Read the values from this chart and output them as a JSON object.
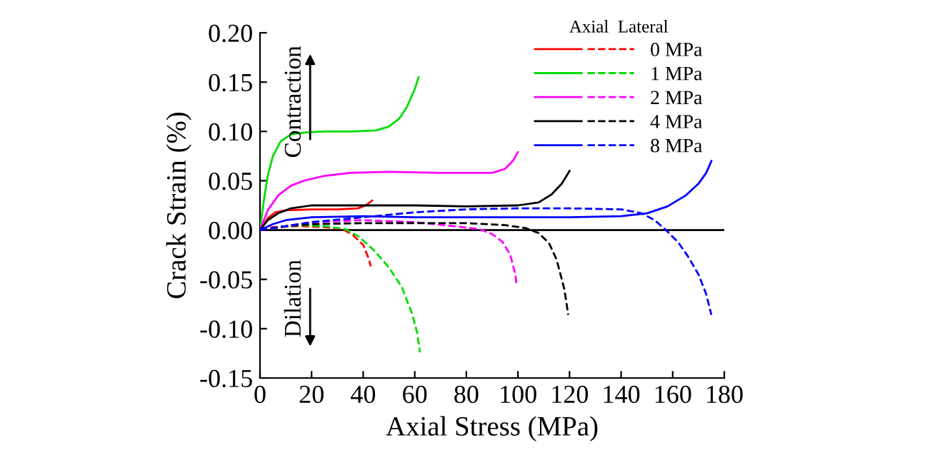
{
  "chart_data": {
    "type": "line",
    "xlabel": "Axial Stress (MPa)",
    "ylabel": "Crack Strain (%)",
    "legend_title": "Axial  Lateral",
    "legend": "top right",
    "line_style": "solid",
    "xlim": [
      0,
      180
    ],
    "ylim": [
      -0.15,
      0.2
    ],
    "xticks": [
      0,
      20,
      40,
      60,
      80,
      100,
      120,
      140,
      160,
      180
    ],
    "yticks": [
      {
        "value": -0.15,
        "label": "-0.15"
      },
      {
        "value": -0.1,
        "label": "-0.10"
      },
      {
        "value": -0.05,
        "label": "-0.05"
      },
      {
        "value": 0,
        "label": "0.00"
      },
      {
        "value": 0.05,
        "label": "0.05"
      },
      {
        "value": 0.1,
        "label": "0.10"
      },
      {
        "value": 0.15,
        "label": "0.15"
      },
      {
        "value": 0.2,
        "label": "0.20"
      }
    ],
    "ref_lines": [
      {
        "axis": "y",
        "value": 0,
        "color": "#000000"
      }
    ],
    "annotations": [
      "Contraction",
      "Dilation"
    ],
    "series": [
      {
        "name": "0 MPa",
        "color": "#ff0000",
        "x": [
          0,
          3,
          6,
          10,
          20,
          30,
          38,
          41,
          43.5
        ],
        "values": [
          0,
          0.012,
          0.018,
          0.02,
          0.021,
          0.021,
          0.022,
          0.025,
          0.03
        ]
      },
      {
        "color": "#ff0000",
        "line_style": "dashed",
        "x": [
          0,
          5,
          15,
          25,
          32,
          36,
          40,
          42,
          43
        ],
        "values": [
          0,
          0.003,
          0.004,
          0.003,
          0.001,
          -0.005,
          -0.015,
          -0.028,
          -0.037
        ]
      },
      {
        "name": "1 MPa",
        "color": "#00dd00",
        "x": [
          0,
          1.5,
          3,
          5,
          8,
          12,
          18,
          25,
          35,
          45,
          50,
          54,
          57,
          60,
          61.5
        ],
        "values": [
          0,
          0.03,
          0.055,
          0.075,
          0.09,
          0.097,
          0.099,
          0.1,
          0.1,
          0.101,
          0.105,
          0.113,
          0.125,
          0.143,
          0.155
        ]
      },
      {
        "color": "#00dd00",
        "line_style": "dashed",
        "x": [
          0,
          8,
          15,
          25,
          33,
          38,
          44,
          50,
          55,
          59,
          61,
          62
        ],
        "values": [
          0,
          0.003,
          0.005,
          0.004,
          0.001,
          -0.006,
          -0.02,
          -0.038,
          -0.058,
          -0.085,
          -0.105,
          -0.124
        ]
      },
      {
        "name": "2 MPa",
        "color": "#ff00ff",
        "x": [
          0,
          3,
          7,
          12,
          17,
          25,
          35,
          50,
          70,
          90,
          95,
          98,
          100
        ],
        "values": [
          0,
          0.02,
          0.035,
          0.045,
          0.05,
          0.055,
          0.058,
          0.059,
          0.058,
          0.058,
          0.062,
          0.07,
          0.079
        ]
      },
      {
        "color": "#ff00ff",
        "line_style": "dashed",
        "x": [
          0,
          10,
          20,
          40,
          60,
          75,
          85,
          90,
          94,
          97,
          99,
          99.5
        ],
        "values": [
          0,
          0.004,
          0.008,
          0.01,
          0.008,
          0.004,
          0.001,
          -0.004,
          -0.012,
          -0.025,
          -0.045,
          -0.057
        ]
      },
      {
        "name": "4 MPa",
        "color": "#000000",
        "x": [
          0,
          3,
          7,
          12,
          20,
          40,
          60,
          80,
          100,
          108,
          113,
          117,
          120
        ],
        "values": [
          0,
          0.01,
          0.017,
          0.022,
          0.025,
          0.025,
          0.025,
          0.024,
          0.025,
          0.028,
          0.036,
          0.047,
          0.06
        ]
      },
      {
        "color": "#000000",
        "line_style": "dashed",
        "x": [
          0,
          10,
          20,
          40,
          60,
          80,
          95,
          103,
          108,
          112,
          115,
          118,
          119.5
        ],
        "values": [
          0,
          0.004,
          0.006,
          0.007,
          0.007,
          0.007,
          0.005,
          0.002,
          -0.003,
          -0.013,
          -0.03,
          -0.06,
          -0.086
        ]
      },
      {
        "name": "8 MPa",
        "color": "#0000ff",
        "x": [
          0,
          5,
          10,
          20,
          40,
          60,
          80,
          100,
          120,
          140,
          150,
          158,
          165,
          170,
          173,
          175
        ],
        "values": [
          0,
          0.006,
          0.01,
          0.013,
          0.014,
          0.013,
          0.013,
          0.013,
          0.013,
          0.014,
          0.017,
          0.024,
          0.035,
          0.047,
          0.058,
          0.07
        ]
      },
      {
        "color": "#0000ff",
        "line_style": "dashed",
        "x": [
          0,
          10,
          20,
          40,
          60,
          80,
          100,
          120,
          140,
          148,
          153,
          157,
          162,
          166,
          170,
          173,
          175
        ],
        "values": [
          0,
          0.004,
          0.008,
          0.013,
          0.018,
          0.021,
          0.022,
          0.022,
          0.021,
          0.017,
          0.01,
          0.001,
          -0.012,
          -0.027,
          -0.045,
          -0.065,
          -0.086
        ]
      }
    ]
  }
}
